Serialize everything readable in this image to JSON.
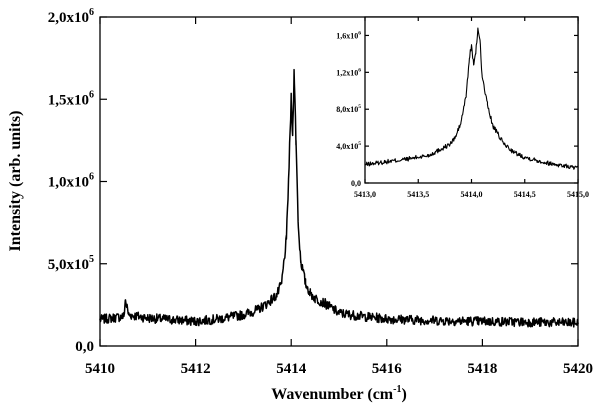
{
  "chart_data": [
    {
      "type": "line",
      "xlabel_main": "Wavenumber (cm",
      "xlabel_sup": "-1",
      "xlabel_end": ")",
      "ylabel": "Intensity (arb. units)",
      "xlim": [
        5410,
        5420
      ],
      "ylim": [
        0,
        2000000
      ],
      "x_ticks": [
        5410,
        5412,
        5414,
        5416,
        5418,
        5420
      ],
      "x_tick_labels": [
        "5410",
        "5412",
        "5414",
        "5416",
        "5418",
        "5420"
      ],
      "y_ticks": [
        0,
        500000,
        1000000,
        1500000,
        2000000
      ],
      "y_tick_labels": [
        {
          "base": "0,0",
          "exp": ""
        },
        {
          "base": "5,0x10",
          "exp": "5"
        },
        {
          "base": "1,0x10",
          "exp": "6"
        },
        {
          "base": "1,5x10",
          "exp": "6"
        },
        {
          "base": "2,0x10",
          "exp": "6"
        }
      ],
      "grid": false,
      "series": [
        {
          "x": [
            5410.0,
            5410.5,
            5410.53,
            5410.6,
            5411.0,
            5411.5,
            5412.0,
            5412.5,
            5413.0,
            5413.3,
            5413.5,
            5413.7,
            5413.8,
            5413.9,
            5413.95,
            5414.0,
            5414.03,
            5414.06,
            5414.1,
            5414.15,
            5414.2,
            5414.3,
            5414.4,
            5414.5,
            5414.7,
            5415.0,
            5415.5,
            5416.0,
            5417.0,
            5418.0,
            5419.0,
            5420.0
          ],
          "y": [
            160000,
            180000,
            280000,
            190000,
            170000,
            160000,
            150000,
            165000,
            190000,
            220000,
            260000,
            310000,
            380000,
            650000,
            1050000,
            1500000,
            1280000,
            1680000,
            1250000,
            720000,
            520000,
            380000,
            320000,
            290000,
            260000,
            200000,
            180000,
            165000,
            155000,
            150000,
            145000,
            140000
          ]
        }
      ]
    },
    {
      "type": "line",
      "inset": true,
      "xlim": [
        5413.0,
        5415.0
      ],
      "ylim": [
        0,
        1800000
      ],
      "x_ticks": [
        5413.0,
        5413.5,
        5414.0,
        5414.5,
        5415.0
      ],
      "x_tick_labels": [
        "5413,0",
        "5413,5",
        "5414,0",
        "5414,5",
        "5415,0"
      ],
      "y_ticks": [
        0,
        400000,
        800000,
        1200000,
        1600000
      ],
      "y_tick_labels": [
        {
          "base": "0,0",
          "exp": ""
        },
        {
          "base": "4,0x10",
          "exp": "5"
        },
        {
          "base": "8,0x10",
          "exp": "5"
        },
        {
          "base": "1,2x10",
          "exp": "6"
        },
        {
          "base": "1,6x10",
          "exp": "6"
        }
      ],
      "series": [
        {
          "x": [
            5413.0,
            5413.2,
            5413.4,
            5413.6,
            5413.7,
            5413.8,
            5413.85,
            5413.9,
            5413.95,
            5413.98,
            5414.0,
            5414.02,
            5414.04,
            5414.06,
            5414.08,
            5414.1,
            5414.15,
            5414.2,
            5414.3,
            5414.4,
            5414.5,
            5414.6,
            5414.7,
            5414.8,
            5414.9,
            5415.0
          ],
          "y": [
            200000,
            230000,
            260000,
            300000,
            360000,
            420000,
            500000,
            650000,
            950000,
            1350000,
            1500000,
            1280000,
            1400000,
            1680000,
            1550000,
            1150000,
            850000,
            620000,
            430000,
            330000,
            280000,
            250000,
            220000,
            200000,
            180000,
            160000
          ]
        }
      ]
    }
  ]
}
